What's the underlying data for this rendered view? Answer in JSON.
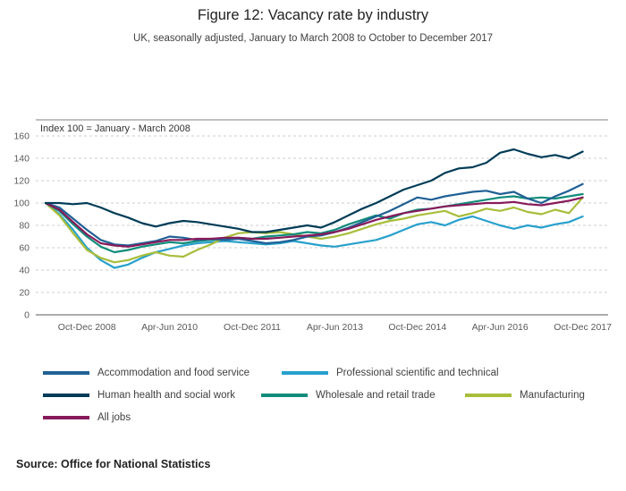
{
  "header": {
    "title": "Figure 12: Vacancy rate by industry",
    "subtitle": "UK, seasonally adjusted, January to March 2008 to October to December 2017"
  },
  "chart_data": {
    "type": "line",
    "axis_note": "Index 100 = January - March 2008",
    "ylim": [
      0,
      160
    ],
    "yticks": [
      0,
      20,
      40,
      60,
      80,
      100,
      120,
      140,
      160
    ],
    "xtick_labels": [
      "Oct-Dec 2008",
      "Apr-Jun 2010",
      "Oct-Dec 2011",
      "Apr-Jun 2013",
      "Oct-Dec 2014",
      "Apr-Jun 2016",
      "Oct-Dec 2017"
    ],
    "xtick_indexes": [
      3,
      9,
      15,
      21,
      27,
      33,
      39
    ],
    "n_points": 40,
    "x_description": "Quarterly from Jan-Mar 2008 to Oct-Dec 2017",
    "grid": "dashed horizontal",
    "legend_position": "below",
    "series": [
      {
        "name": "Accommodation and food service",
        "color": "#206095",
        "values": [
          100,
          96,
          86,
          76,
          67,
          63,
          62,
          64,
          66,
          70,
          69,
          67,
          68,
          67,
          68,
          66,
          64,
          65,
          67,
          70,
          71,
          74,
          78,
          83,
          88,
          93,
          99,
          105,
          103,
          106,
          108,
          110,
          111,
          108,
          110,
          104,
          100,
          106,
          111,
          117
        ]
      },
      {
        "name": "Professional scientific and technical",
        "color": "#27A0CC",
        "values": [
          100,
          90,
          76,
          60,
          49,
          42,
          45,
          51,
          56,
          59,
          62,
          64,
          65,
          66,
          65,
          64,
          63,
          64,
          66,
          64,
          62,
          61,
          63,
          65,
          67,
          71,
          76,
          81,
          83,
          80,
          85,
          88,
          84,
          80,
          77,
          80,
          78,
          81,
          83,
          88
        ]
      },
      {
        "name": "Human health and social work",
        "color": "#003C57",
        "values": [
          100,
          100,
          99,
          100,
          96,
          91,
          87,
          82,
          79,
          82,
          84,
          83,
          81,
          79,
          77,
          74,
          74,
          76,
          78,
          80,
          78,
          83,
          89,
          95,
          100,
          106,
          112,
          116,
          120,
          127,
          131,
          132,
          136,
          145,
          148,
          144,
          141,
          143,
          140,
          146
        ]
      },
      {
        "name": "Wholesale and retail trade",
        "color": "#118C7B",
        "values": [
          100,
          93,
          81,
          70,
          61,
          56,
          58,
          61,
          63,
          65,
          64,
          66,
          67,
          68,
          69,
          68,
          70,
          71,
          72,
          74,
          73,
          76,
          81,
          85,
          89,
          86,
          91,
          94,
          95,
          97,
          99,
          101,
          103,
          105,
          106,
          104,
          105,
          104,
          106,
          108
        ]
      },
      {
        "name": "Manufacturing",
        "color": "#A8BD3A",
        "values": [
          100,
          89,
          73,
          58,
          51,
          47,
          49,
          53,
          56,
          53,
          52,
          58,
          63,
          69,
          73,
          74,
          73,
          74,
          72,
          70,
          68,
          70,
          73,
          77,
          81,
          84,
          86,
          89,
          91,
          93,
          88,
          91,
          95,
          93,
          96,
          92,
          90,
          94,
          91,
          105
        ]
      },
      {
        "name": "All jobs",
        "color": "#871A5B",
        "values": [
          100,
          94,
          83,
          72,
          64,
          62,
          61,
          63,
          65,
          67,
          67,
          68,
          68,
          69,
          69,
          68,
          68,
          69,
          70,
          71,
          72,
          74,
          77,
          81,
          85,
          88,
          91,
          93,
          95,
          97,
          98,
          99,
          100,
          100,
          101,
          99,
          98,
          100,
          102,
          105
        ]
      }
    ]
  },
  "source": "Source: Office for National Statistics"
}
